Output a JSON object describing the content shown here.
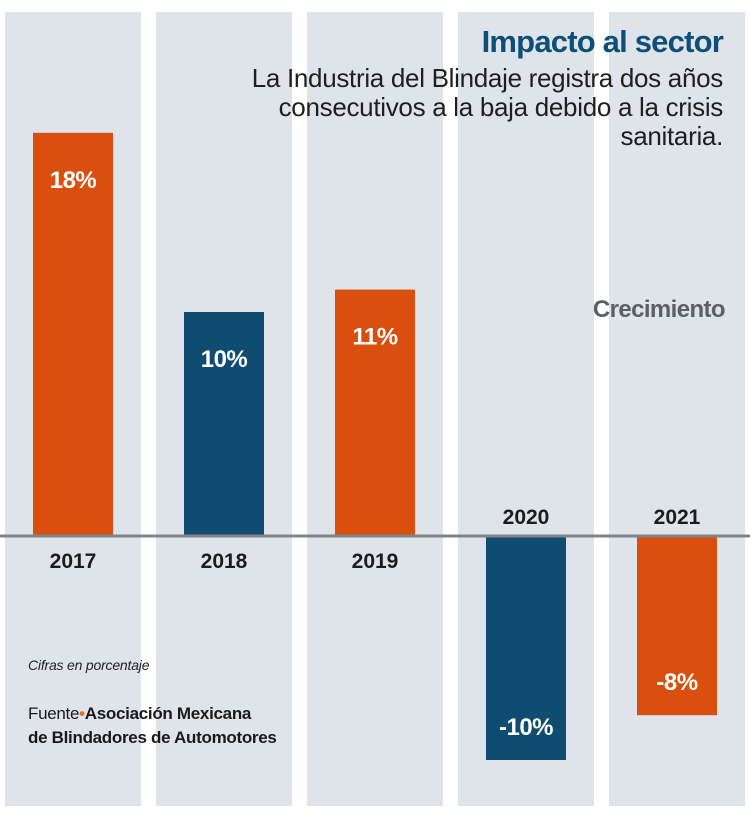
{
  "title": "Impacto al sector",
  "subtitle": "La Industria del Blindaje registra dos años consecutivos a la baja debido a la crisis sanitaria.",
  "series_label": "Crecimiento",
  "note": "Cifras en porcentaje",
  "source": {
    "prefix": "Fuente",
    "separator": "•",
    "line1": "Asociación Mexicana",
    "line2": "de Blindadores de Automotores"
  },
  "colors": {
    "orange": "#d9500e",
    "blue": "#0e4c72",
    "column_bg": "#dfe4ea",
    "axis": "#808488",
    "label_dark": "#1c1c1c",
    "label_light": "#ffffff"
  },
  "chart_data": {
    "type": "bar",
    "categories": [
      "2017",
      "2018",
      "2019",
      "2020",
      "2021"
    ],
    "series": [
      {
        "name": "Crecimiento",
        "values": [
          18,
          10,
          11,
          -10,
          -8
        ],
        "labels": [
          "18%",
          "10%",
          "11%",
          "-10%",
          "-8%"
        ],
        "colors": [
          "#d9500e",
          "#0e4c72",
          "#d9500e",
          "#0e4c72",
          "#d9500e"
        ]
      }
    ],
    "ylim": [
      -10,
      18
    ],
    "unit": "%",
    "grid": false
  }
}
